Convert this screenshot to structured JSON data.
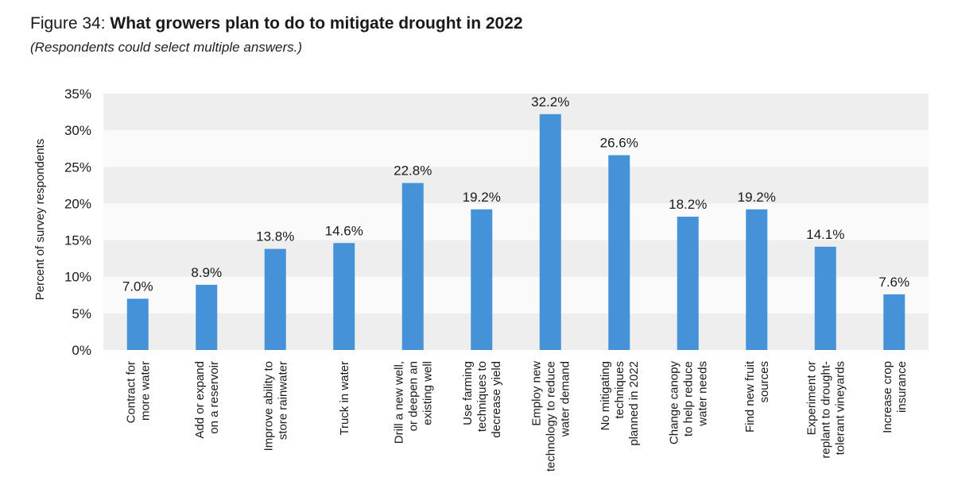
{
  "title_prefix": "Figure 34: ",
  "title": "What growers plan to do to mitigate drought in 2022",
  "subtitle": "(Respondents could select multiple answers.)",
  "chart_data": {
    "type": "bar",
    "ylabel": "Percent of survey respondents",
    "ylim": [
      0,
      35
    ],
    "yticks": [
      "0%",
      "5%",
      "10%",
      "15%",
      "20%",
      "25%",
      "30%",
      "35%"
    ],
    "ytick_values": [
      0,
      5,
      10,
      15,
      20,
      25,
      30,
      35
    ],
    "bar_color": "#4592d8",
    "band_colors": [
      "#eeeeee",
      "#fafafa"
    ],
    "categories": [
      [
        "Contract for",
        "more water"
      ],
      [
        "Add or expand",
        "on a reservoir"
      ],
      [
        "Improve ability to",
        "store rainwater"
      ],
      [
        "Truck in water"
      ],
      [
        "Drill a new well,",
        "or deepen an",
        "existing well"
      ],
      [
        "Use farming",
        "techniques to",
        "decrease yield"
      ],
      [
        "Employ new",
        "technology to reduce",
        "water demand"
      ],
      [
        "No mitigating",
        "techniques",
        "planned in 2022"
      ],
      [
        "Change canopy",
        "to help reduce",
        "water needs"
      ],
      [
        "Find new fruit",
        "sources"
      ],
      [
        "Experiment or",
        "replant to drought-",
        "tolerant vineyards"
      ],
      [
        "Increase crop",
        "insurance"
      ]
    ],
    "values": [
      7.0,
      8.9,
      13.8,
      14.6,
      22.8,
      19.2,
      32.2,
      26.6,
      18.2,
      19.2,
      14.1,
      7.6
    ],
    "value_labels": [
      "7.0%",
      "8.9%",
      "13.8%",
      "14.6%",
      "22.8%",
      "19.2%",
      "32.2%",
      "26.6%",
      "18.2%",
      "19.2%",
      "14.1%",
      "7.6%"
    ]
  }
}
